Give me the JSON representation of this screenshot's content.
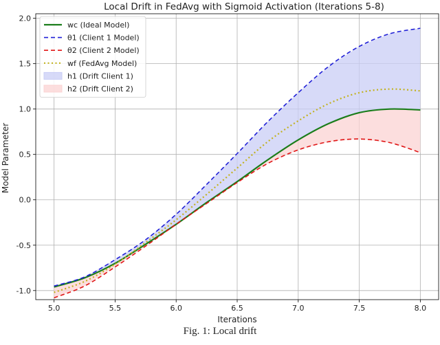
{
  "caption": "Fig. 1: Local drift",
  "chart_data": {
    "type": "line",
    "title": "Local Drift in FedAvg with Sigmoid Activation (Iterations 5-8)",
    "xlabel": "Iterations",
    "ylabel": "Model Parameter",
    "xlim": [
      4.85,
      8.15
    ],
    "ylim": [
      -1.1,
      2.05
    ],
    "xticks": [
      5.0,
      5.5,
      6.0,
      6.5,
      7.0,
      7.5,
      8.0
    ],
    "xtick_labels": [
      "5.0",
      "5.5",
      "6.0",
      "6.5",
      "7.0",
      "7.5",
      "8.0"
    ],
    "yticks": [
      -1.0,
      -0.5,
      0.0,
      0.5,
      1.0,
      1.5,
      2.0
    ],
    "ytick_labels": [
      "-1.0",
      "-0.5",
      "0.0",
      "0.5",
      "1.0",
      "1.5",
      "2.0"
    ],
    "grid": true,
    "legend_position": "top-left",
    "x": [
      5.0,
      5.25,
      5.5,
      5.75,
      6.0,
      6.25,
      6.5,
      6.75,
      7.0,
      7.25,
      7.5,
      7.75,
      8.0
    ],
    "series": [
      {
        "name": "wc (Ideal Model)",
        "color": "#1a7d1a",
        "dash": "solid",
        "width": 2.2,
        "values": [
          -0.96,
          -0.86,
          -0.7,
          -0.49,
          -0.27,
          -0.03,
          0.2,
          0.44,
          0.66,
          0.84,
          0.96,
          1.0,
          0.99
        ]
      },
      {
        "name": "θ1 (Client 1 Model)",
        "color": "#1f1fd6",
        "dash": "dashed",
        "width": 1.6,
        "values": [
          -0.95,
          -0.85,
          -0.66,
          -0.44,
          -0.16,
          0.17,
          0.51,
          0.86,
          1.18,
          1.47,
          1.69,
          1.83,
          1.89
        ]
      },
      {
        "name": "θ2 (Client 2 Model)",
        "color": "#e01515",
        "dash": "dashed",
        "width": 1.6,
        "values": [
          -1.08,
          -0.95,
          -0.74,
          -0.51,
          -0.27,
          -0.04,
          0.19,
          0.4,
          0.55,
          0.64,
          0.67,
          0.63,
          0.52
        ]
      },
      {
        "name": "wf (FedAvg Model)",
        "color": "#c2b21e",
        "dash": "dotted",
        "width": 2.2,
        "values": [
          -1.02,
          -0.9,
          -0.71,
          -0.47,
          -0.22,
          0.06,
          0.35,
          0.64,
          0.87,
          1.06,
          1.18,
          1.22,
          1.2
        ]
      }
    ],
    "fills": [
      {
        "name": "h1 (Drift Client 1)",
        "between": [
          "wc (Ideal Model)",
          "θ1 (Client 1 Model)"
        ],
        "color": "#c9cdf6"
      },
      {
        "name": "h2 (Drift Client 2)",
        "between": [
          "θ2 (Client 2 Model)",
          "wc (Ideal Model)"
        ],
        "color": "#fbd3d3"
      }
    ]
  }
}
